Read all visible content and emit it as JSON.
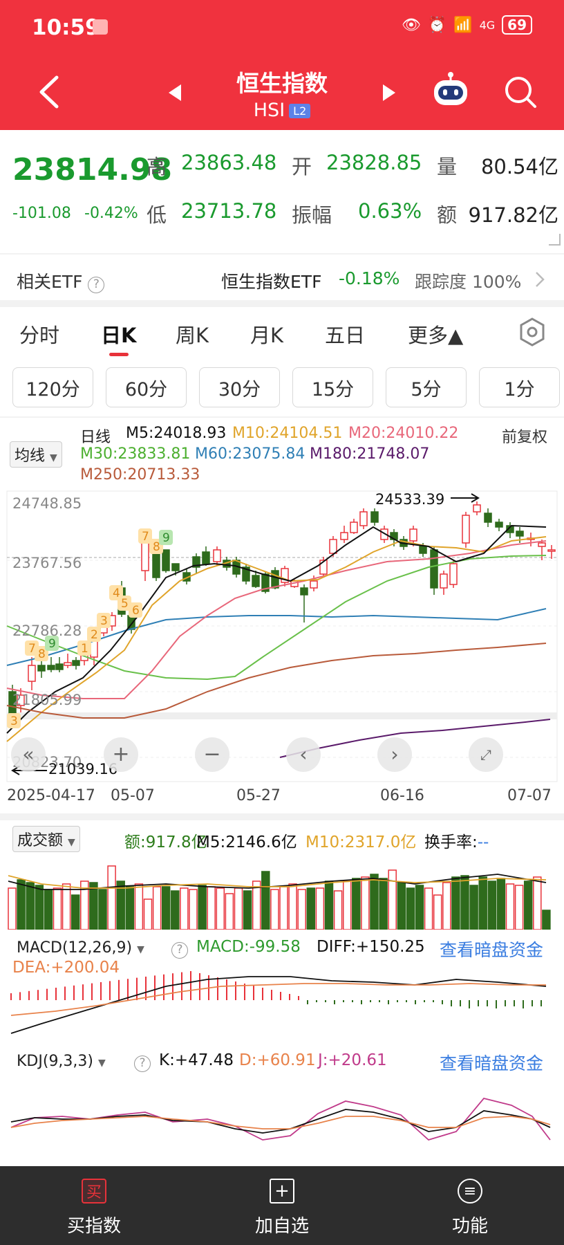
{
  "status": {
    "time": "10:59",
    "battery": "69",
    "network": "4G"
  },
  "header": {
    "title": "恒生指数",
    "subtitle": "HSI",
    "badge": "L2"
  },
  "quote": {
    "price": "23814.98",
    "change": "-101.08",
    "change_pct": "-0.42%",
    "high_label": "高",
    "high": "23863.48",
    "open_label": "开",
    "open": "23828.85",
    "vol_label": "量",
    "volume": "80.54亿",
    "low_label": "低",
    "low": "23713.78",
    "amp_label": "振幅",
    "amplitude": "0.63%",
    "amt_label": "额",
    "amount": "917.82亿"
  },
  "etf": {
    "label": "相关ETF",
    "name": "恒生指数ETF",
    "change": "-0.18%",
    "track": "跟踪度 100%"
  },
  "tabs": [
    "分时",
    "日K",
    "周K",
    "月K",
    "五日",
    "更多▲"
  ],
  "minute_buttons": [
    "120分",
    "60分",
    "30分",
    "15分",
    "5分",
    "1分"
  ],
  "ma_legend": {
    "dropdown": "均线",
    "day_label": "日线",
    "adjust": "前复权",
    "m5": "M5:24018.93",
    "m10": "M10:24104.51",
    "m20": "M20:24010.22",
    "m30": "M30:23833.81",
    "m60": "M60:23075.84",
    "m180": "M180:21748.07",
    "m250": "M250:20713.33"
  },
  "colors": {
    "up": "#e8323a",
    "down": "#2e6b1c",
    "m5": "#111111",
    "m10": "#e0a42a",
    "m20": "#e8677a",
    "m30": "#69c04a",
    "m60": "#2f7fb5",
    "m180": "#5a1a6a",
    "m250": "#b85a3a"
  },
  "chart_axis": {
    "y_top": "24748.85",
    "y_mid": "23767.56",
    "y_low": "22786.28",
    "y_3": "21805.99",
    "y_bottom": "20823.70",
    "high_marker": "24533.39",
    "low_marker": "21039.16",
    "dates": [
      "2025-04-17",
      "05-07",
      "05-27",
      "06-16",
      "07-07"
    ],
    "seq_labels": [
      "3",
      "7",
      "8",
      "9",
      "1",
      "2",
      "3",
      "4",
      "5",
      "6",
      "7",
      "8",
      "9"
    ]
  },
  "volume_panel": {
    "dropdown": "成交额",
    "amount": "额:917.8亿",
    "m5": "M5:2146.6亿",
    "m10": "M10:2317.0亿",
    "turnover": "换手率:",
    "turnover_value": "--"
  },
  "macd_panel": {
    "dropdown": "MACD(12,26,9)",
    "macd": "MACD:-99.58",
    "diff": "DIFF:+150.25",
    "dea": "DEA:+200.04",
    "link": "查看暗盘资金"
  },
  "kdj_panel": {
    "dropdown": "KDJ(9,3,3)",
    "k": "K:+47.48",
    "d": "D:+60.91",
    "j": "J:+20.61",
    "link": "查看暗盘资金"
  },
  "bottom": {
    "buy": "买指数",
    "buy_icon": "买",
    "add": "加自选",
    "func": "功能"
  }
}
